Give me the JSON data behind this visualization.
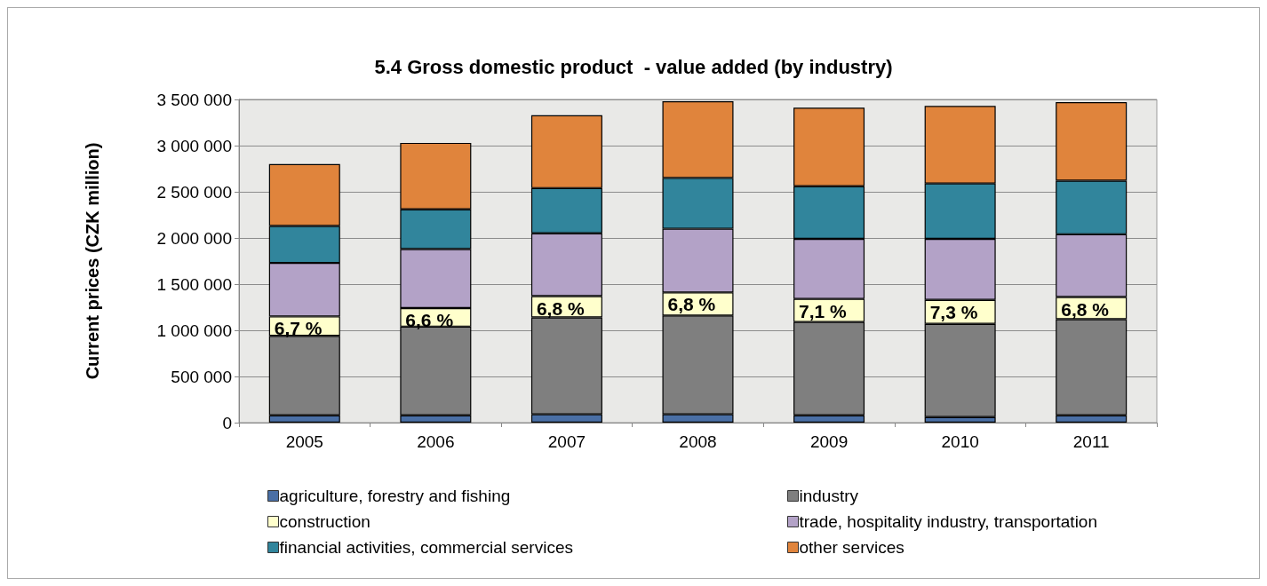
{
  "chart_data": {
    "type": "bar",
    "title": "5.4 Gross domestic product  - value added (by industry)",
    "ylabel": "Current prices (CZK million)",
    "categories": [
      "2005",
      "2006",
      "2007",
      "2008",
      "2009",
      "2010",
      "2011"
    ],
    "stacked": true,
    "series": [
      {
        "name": "agriculture, forestry and fishing",
        "color": "#4a6fa5",
        "values": [
          80000,
          80000,
          90000,
          90000,
          80000,
          60000,
          80000
        ]
      },
      {
        "name": "industry",
        "color": "#7f7f7f",
        "values": [
          860000,
          960000,
          1050000,
          1070000,
          1010000,
          1010000,
          1040000
        ]
      },
      {
        "name": "construction",
        "color": "#ffffcc",
        "values": [
          210000,
          200000,
          230000,
          250000,
          250000,
          260000,
          240000
        ]
      },
      {
        "name": "trade, hospitality industry, transportation",
        "color": "#b3a2c7",
        "values": [
          580000,
          640000,
          680000,
          690000,
          650000,
          660000,
          680000
        ]
      },
      {
        "name": "financial activities, commercial services",
        "color": "#31859c",
        "values": [
          400000,
          430000,
          490000,
          550000,
          570000,
          600000,
          580000
        ]
      },
      {
        "name": "other services",
        "color": "#e0843c",
        "values": [
          670000,
          720000,
          790000,
          830000,
          850000,
          840000,
          850000
        ]
      }
    ],
    "annotations": [
      {
        "text": "6,7 %",
        "x": "2005",
        "y": 1150000
      },
      {
        "text": "6,6 %",
        "x": "2006",
        "y": 1240000
      },
      {
        "text": "6,8 %",
        "x": "2007",
        "y": 1370000
      },
      {
        "text": "6,8 %",
        "x": "2008",
        "y": 1410000
      },
      {
        "text": "7,1 %",
        "x": "2009",
        "y": 1340000
      },
      {
        "text": "7,3 %",
        "x": "2010",
        "y": 1330000
      },
      {
        "text": "6,8 %",
        "x": "2011",
        "y": 1360000
      }
    ],
    "ylim": [
      0,
      3500000
    ],
    "yticks": [
      0,
      {
        "value": 500000,
        "label": "500 000"
      },
      {
        "value": 1000000,
        "label": "1 000 000"
      },
      {
        "value": 1500000,
        "label": "1 500 000"
      },
      {
        "value": 2000000,
        "label": "2 000 000"
      },
      {
        "value": 2500000,
        "label": "2 500 000"
      },
      {
        "value": 3000000,
        "label": "3 000 000"
      },
      {
        "value": 3500000,
        "label": "3 500 000"
      }
    ],
    "grid": "y",
    "legend": "bottom"
  }
}
